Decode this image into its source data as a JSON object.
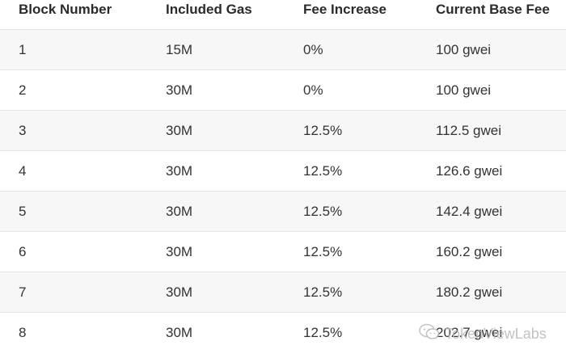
{
  "table": {
    "headers": [
      "Block Number",
      "Included Gas",
      "Fee Increase",
      "Current Base Fee"
    ],
    "rows": [
      [
        "1",
        "15M",
        "0%",
        "100 gwei"
      ],
      [
        "2",
        "30M",
        "0%",
        "100 gwei"
      ],
      [
        "3",
        "30M",
        "12.5%",
        "112.5 gwei"
      ],
      [
        "4",
        "30M",
        "12.5%",
        "126.6 gwei"
      ],
      [
        "5",
        "30M",
        "12.5%",
        "142.4 gwei"
      ],
      [
        "6",
        "30M",
        "12.5%",
        "160.2 gwei"
      ],
      [
        "7",
        "30M",
        "12.5%",
        "180.2 gwei"
      ],
      [
        "8",
        "30M",
        "12.5%",
        "202.7 gwei"
      ]
    ]
  },
  "watermark": {
    "text": "TokenViewLabs",
    "icon": "wechat-icon"
  }
}
